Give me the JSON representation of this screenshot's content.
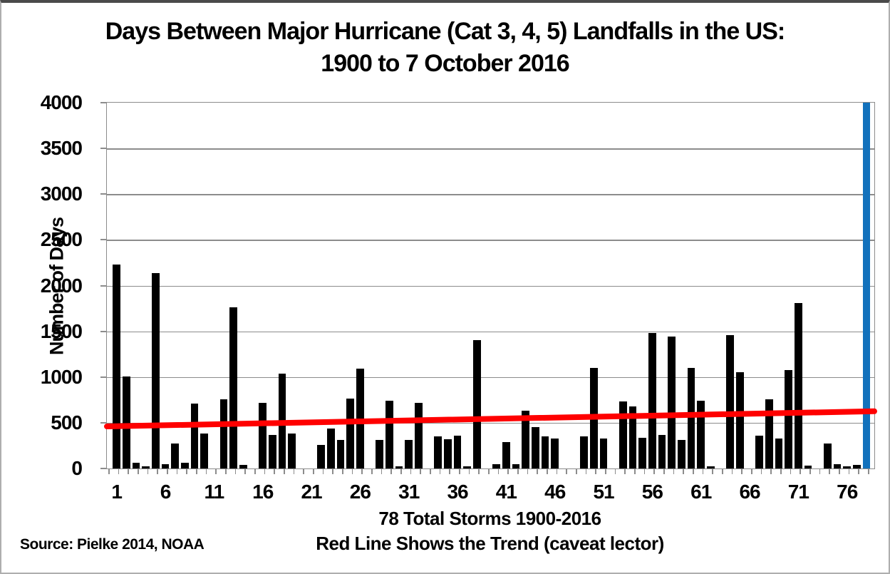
{
  "title": {
    "line1": "Days Between Major Hurricane (Cat 3, 4, 5) Landfalls in the US:",
    "line2": "1900 to 7 October 2016"
  },
  "y_axis": {
    "title": "Number of Days",
    "ticks": [
      0,
      500,
      1000,
      1500,
      2000,
      2500,
      3000,
      3500,
      4000
    ]
  },
  "x_axis": {
    "tick_labels": [
      1,
      6,
      11,
      16,
      21,
      26,
      31,
      36,
      41,
      46,
      51,
      56,
      61,
      66,
      71,
      76
    ],
    "caption_line1": "78 Total Storms 1900-2016",
    "caption_line2": "Red Line Shows the Trend (caveat lector)"
  },
  "source": "Source: Pielke 2014, NOAA",
  "colors": {
    "bar": "#000000",
    "highlight_bar": "#1271BC",
    "trend_line": "#FF0000",
    "gridline": "#8c8c8c"
  },
  "chart_data": {
    "type": "bar",
    "title": "Days Between Major Hurricane (Cat 3, 4, 5) Landfalls in the US: 1900 to 7 October 2016",
    "xlabel": "78 Total Storms 1900-2016",
    "ylabel": "Number of Days",
    "units": "days",
    "ylim": [
      0,
      4000
    ],
    "grid": true,
    "n_storms": 78,
    "x": "storm index 1-78",
    "values": [
      2230,
      1005,
      60,
      25,
      2140,
      45,
      275,
      65,
      710,
      385,
      0,
      760,
      1760,
      40,
      0,
      715,
      365,
      1040,
      380,
      0,
      0,
      260,
      435,
      315,
      765,
      1090,
      0,
      315,
      740,
      25,
      310,
      720,
      0,
      350,
      320,
      360,
      25,
      1400,
      0,
      45,
      285,
      45,
      635,
      450,
      350,
      330,
      0,
      0,
      350,
      1100,
      330,
      0,
      735,
      680,
      335,
      1485,
      370,
      1440,
      310,
      1100,
      740,
      25,
      0,
      1455,
      1050,
      0,
      355,
      755,
      325,
      1075,
      1810,
      30,
      0,
      275,
      45,
      25,
      40,
      4000
    ],
    "highlight": {
      "index": 78,
      "color": "#1271BC",
      "note": "final blue bar is clipped at axis maximum 4000"
    },
    "trend_line": {
      "type": "linear",
      "color": "#FF0000",
      "start_value": 460,
      "end_value": 625,
      "label": "Red Line Shows the Trend (caveat lector)"
    }
  }
}
